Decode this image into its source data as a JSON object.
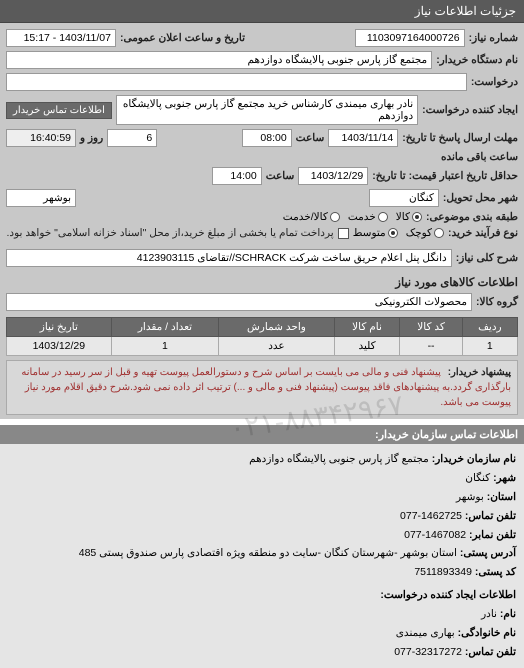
{
  "header": {
    "title": "جزئیات اطلاعات نیاز"
  },
  "form": {
    "need_no_label": "شماره نیاز:",
    "need_no": "1103097164000726",
    "announce_label": "تاریخ و ساعت اعلان عمومی:",
    "announce_value": "1403/11/07 - 15:17",
    "buyer_label": "نام دستگاه خریدار:",
    "buyer_value": "مجتمع گاز پارس جنوبی  پالایشگاه دوازدهم",
    "request_label": "درخواست:",
    "creator_label": "ایجاد کننده درخواست:",
    "creator_value": "نادر بهاری میمندی کارشناس خرید مجتمع گاز پارس جنوبی  پالایشگاه دوازدهم",
    "contact_btn": "اطلاعات تماس خریدار",
    "deadline_send_label": "مهلت ارسال پاسخ تا تاریخ:",
    "deadline_send_date": "1403/11/14",
    "time_label": "ساعت",
    "deadline_send_time": "08:00",
    "days_count": "6",
    "days_label": "روز و",
    "remain_time": "16:40:59",
    "remain_label": "ساعت باقی مانده",
    "price_valid_label": "حداقل تاریخ اعتبار قیمت: تا تاریخ:",
    "price_valid_date": "1403/12/29",
    "price_valid_time": "14:00",
    "delivery_city_label": "شهر محل تحویل:",
    "delivery_city1": "کنگان",
    "delivery_city2": "بوشهر",
    "category_label": "طبقه بندی موضوعی:",
    "radio_goods": "کالا",
    "radio_service": "خدمت",
    "radio_goods_service": "کالا/خدمت",
    "process_label": "نوع فرآیند خرید:",
    "radio_small": "کوچک",
    "radio_medium": "متوسط",
    "payment_note": "پرداخت تمام یا بخشی از مبلغ خرید،از محل \"اسناد خزانه اسلامی\" خواهد بود.",
    "keywords_label": "شرح کلی نیاز:",
    "keywords_value": "دانگل پنل اعلام حریق ساخت شرکت SCHRACK//تقاضای 4123903115",
    "items_section": "اطلاعات کالاهای مورد نیاز",
    "group_label": "گروه کالا:",
    "group_value": "محصولات الکترونیکی"
  },
  "table": {
    "columns": [
      "ردیف",
      "کد کالا",
      "نام کالا",
      "واحد شمارش",
      "تعداد / مقدار",
      "تاریخ نیاز"
    ],
    "rows": [
      [
        "1",
        "--",
        "کلید",
        "عدد",
        "1",
        "1403/12/29"
      ]
    ]
  },
  "note": {
    "label": "پیشنهاد خریدار:",
    "text": "پیشنهاد فنی و مالی می بایست بر اساس شرح و دستورالعمل پیوست تهیه و قبل از سر رسید در سامانه بارگذاری گردد.به پیشنهادهای فاقد پیوست (پیشنهاد فنی و مالی و ...) ترتیب اثر داده نمی شود.شرح دقیق اقلام مورد نیاز پیوست می باشد."
  },
  "contact": {
    "section_title": "اطلاعات تماس سازمان خریدار:",
    "org_label": "نام سازمان خریدار:",
    "org_value": "مجتمع گاز پارس جنوبی پالایشگاه دوازدهم",
    "city_label": "شهر:",
    "city_value": "کنگان",
    "province_label": "استان:",
    "province_value": "بوشهر",
    "phone_label": "تلفن تماس:",
    "phone_value": "1462725-077",
    "fax_label": "تلفن نمابر:",
    "fax_value": "1467082-077",
    "address_label": "آدرس پستی:",
    "address_value": "استان بوشهر -شهرستان کنگان -سایت دو منطقه ویژه اقتصادی پارس صندوق پستی 485",
    "postal_label": "کد پستی:",
    "postal_value": "7511893349",
    "requester_section": "اطلاعات ایجاد کننده درخواست:",
    "name_label": "نام:",
    "name_value": "نادر",
    "family_label": "نام خانوادگی:",
    "family_value": "بهاری میمندی",
    "req_phone_label": "تلفن تماس:",
    "req_phone_value": "32317272-077"
  },
  "watermark": "۰۲۱-۸۸۳۴۲۹۶۷"
}
